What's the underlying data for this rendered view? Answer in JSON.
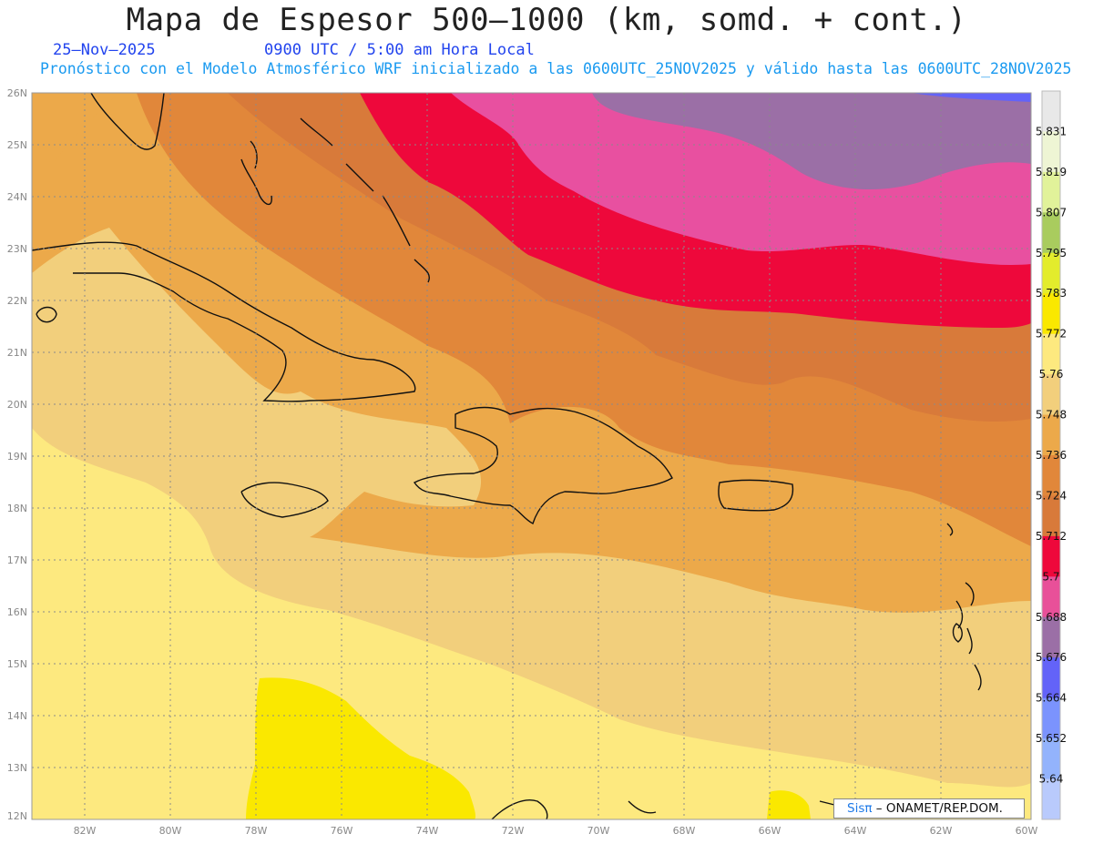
{
  "header": {
    "title": "Mapa de Espesor 500–1000 (km, somd. + cont.)",
    "date": "25–Nov–2025",
    "time": "0900 UTC / 5:00 am Hora Local",
    "forecast_note": "Pronóstico con el Modelo Atmosférico WRF inicializado a las 0600UTC_25NOV2025 y válido hasta las  0600UTC_28NOV2025"
  },
  "map": {
    "lat_labels": [
      "26N",
      "25N",
      "24N",
      "23N",
      "22N",
      "21N",
      "20N",
      "19N",
      "18N",
      "17N",
      "16N",
      "15N",
      "14N",
      "13N",
      "12N"
    ],
    "lon_labels": [
      "82W",
      "80W",
      "78W",
      "76W",
      "74W",
      "72W",
      "70W",
      "68W",
      "66W",
      "64W",
      "62W",
      "60W"
    ]
  },
  "colorbar": {
    "labels": [
      "5.831",
      "5.819",
      "5.807",
      "5.795",
      "5.783",
      "5.772",
      "5.76",
      "5.748",
      "5.736",
      "5.724",
      "5.712",
      "5.7",
      "5.688",
      "5.676",
      "5.664",
      "5.652",
      "5.64"
    ],
    "colors": [
      "#e8e8e8",
      "#eef5d4",
      "#e1f29a",
      "#a9cc5e",
      "#e3ec2c",
      "#fae800",
      "#fde97f",
      "#f2cf7c",
      "#eca94a",
      "#e1873a",
      "#d87a3a",
      "#ee083b",
      "#e85099",
      "#9b6fa6",
      "#6363f8",
      "#7b93fd",
      "#93b3fc",
      "#b9cafc"
    ]
  },
  "credit": {
    "sis": "Sisπ",
    "org": "– ONAMET/REP.DOM."
  }
}
